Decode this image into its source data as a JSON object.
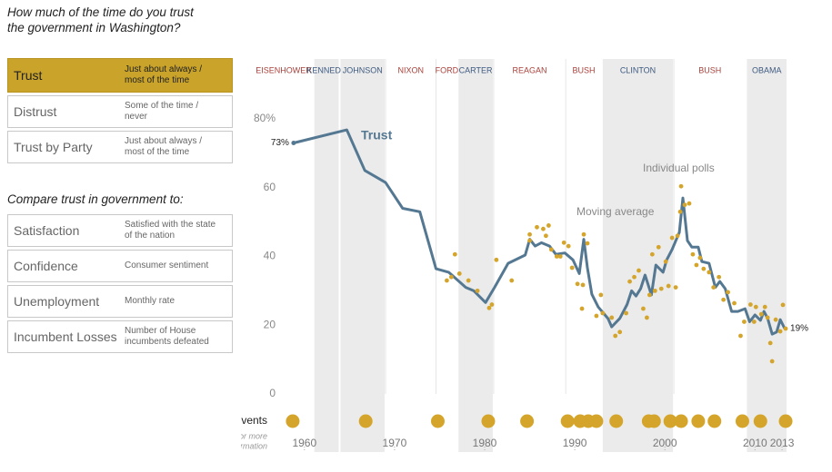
{
  "sidebar": {
    "question": [
      "How much of the time do you trust",
      "the government in Washington?"
    ],
    "measures": [
      {
        "label": "Trust",
        "description": [
          "Just about always /",
          "most of the time"
        ],
        "active": true
      },
      {
        "label": "Distrust",
        "description": [
          "Some of the time /",
          "never"
        ]
      },
      {
        "label": "Trust by Party",
        "description": [
          "Just about always /",
          "most of the time"
        ]
      }
    ],
    "compare_heading": "Compare trust in government to:",
    "comparisons": [
      {
        "label": "Satisfaction",
        "description": [
          "Satisfied with the state",
          "of the nation"
        ]
      },
      {
        "label": "Confidence",
        "description": [
          "Consumer sentiment"
        ]
      },
      {
        "label": "Unemployment",
        "description": [
          "Monthly rate"
        ]
      },
      {
        "label": "Incumbent Losses",
        "description": [
          "Number of House",
          "incumbents defeated"
        ]
      }
    ]
  },
  "chart_data": {
    "type": "line",
    "label": "Trust",
    "xlim": [
      1957.8,
      2013.6
    ],
    "ylim": [
      0,
      80
    ],
    "xticks": [
      1960,
      1970,
      1980,
      1990,
      2000,
      2010,
      2013
    ],
    "yticks": [
      0,
      20,
      40,
      60,
      {
        "value": 80,
        "label": "80%"
      }
    ],
    "presidents": [
      {
        "name": "EISENHOWER",
        "color": "#a8403a"
      },
      {
        "name": "KENNEDY",
        "from": 1961,
        "color": "#3d5a80",
        "shaded": true
      },
      {
        "name": "JOHNSON",
        "from": 1963.9,
        "color": "#3d5a80",
        "shaded": true
      },
      {
        "name": "NIXON",
        "from": 1969,
        "color": "#a8403a"
      },
      {
        "name": "FORD",
        "from": 1974.6,
        "color": "#a8403a"
      },
      {
        "name": "CARTER",
        "from": 1977,
        "color": "#3d5a80",
        "shaded": true
      },
      {
        "name": "REAGAN",
        "from": 1981,
        "color": "#a8403a"
      },
      {
        "name": "BUSH",
        "from": 1989,
        "color": "#a8403a"
      },
      {
        "name": "CLINTON",
        "from": 1993,
        "color": "#3d5a80",
        "shaded": true
      },
      {
        "name": "BUSH",
        "from": 2001,
        "color": "#a8403a"
      },
      {
        "name": "OBAMA",
        "from": 2009,
        "color": "#3d5a80",
        "shaded": true
      }
    ],
    "series": [
      {
        "name": "Moving average",
        "style": "line",
        "color": "#557892",
        "x": [
          1958.8,
          1964.7,
          1966.7,
          1969.0,
          1970.9,
          1972.8,
          1974.6,
          1976.0,
          1977.9,
          1978.8,
          1980.1,
          1981.1,
          1982.6,
          1984.5,
          1985.0,
          1985.6,
          1986.3,
          1987.2,
          1987.9,
          1988.9,
          1989.8,
          1990.5,
          1991.0,
          1991.4,
          1991.9,
          1992.6,
          1993.7,
          1994.1,
          1995.0,
          1995.8,
          1996.3,
          1996.8,
          1997.3,
          1997.8,
          1998.5,
          1999.0,
          1999.8,
          2000.2,
          2000.8,
          2001.6,
          2002.0,
          2002.5,
          2003.0,
          2003.7,
          2004.1,
          2004.9,
          2005.6,
          2006.1,
          2006.7,
          2007.4,
          2008.1,
          2008.9,
          2009.4,
          2010.0,
          2010.6,
          2011.0,
          2011.4,
          2011.9,
          2012.4,
          2012.8,
          2013.3
        ],
        "values": [
          73,
          76.8,
          65,
          61.5,
          54,
          53,
          36.4,
          35.4,
          31,
          30,
          26.6,
          31,
          38,
          40.4,
          45,
          43,
          44,
          43,
          40.6,
          41,
          39,
          35,
          45,
          36.7,
          29,
          25.3,
          21.9,
          19.5,
          22,
          26,
          30,
          28.5,
          30.6,
          34.6,
          28.8,
          37.5,
          35.4,
          39,
          42,
          47,
          57,
          44.6,
          42.7,
          42.7,
          38.5,
          38,
          31,
          32.7,
          30.6,
          24,
          24,
          24.8,
          21,
          23,
          21.4,
          24,
          22,
          17.4,
          18,
          21.6,
          19
        ],
        "value_labels": [
          "73%",
          null,
          null,
          null,
          null,
          null,
          null,
          null,
          null,
          null,
          null,
          null,
          null,
          null,
          null,
          null,
          null,
          null,
          null,
          null,
          null,
          null,
          null,
          null,
          null,
          null,
          null,
          null,
          null,
          null,
          null,
          null,
          null,
          null,
          null,
          null,
          null,
          null,
          null,
          null,
          null,
          null,
          null,
          null,
          null,
          null,
          null,
          null,
          null,
          null,
          null,
          null,
          null,
          null,
          null,
          null,
          null,
          null,
          null,
          null,
          "19%"
        ]
      },
      {
        "name": "Individual polls",
        "style": "points",
        "color": "#d4a52a",
        "x": [
          1975.8,
          1976.3,
          1976.7,
          1977.2,
          1978.2,
          1979.2,
          1980.5,
          1980.8,
          1981.3,
          1983.0,
          1985.0,
          1985.0,
          1985.8,
          1986.5,
          1986.8,
          1987.1,
          1987.4,
          1988.0,
          1988.4,
          1988.8,
          1989.3,
          1989.7,
          1990.3,
          1990.9,
          1991.0,
          1991.4,
          1990.8,
          1992.4,
          1992.9,
          1993.1,
          1994.1,
          1994.5,
          1995.0,
          1995.7,
          1996.1,
          1996.6,
          1997.1,
          1997.6,
          1998.0,
          1998.3,
          1998.6,
          1998.9,
          1999.3,
          1999.6,
          2000.1,
          2000.4,
          2000.8,
          2001.2,
          2001.4,
          2001.7,
          2001.8,
          2002.2,
          2002.7,
          2003.1,
          2003.5,
          2003.9,
          2004.3,
          2004.9,
          2005.4,
          2006.0,
          2006.5,
          2007.0,
          2007.7,
          2008.4,
          2008.8,
          2009.5,
          2009.9,
          2010.1,
          2010.7,
          2011.1,
          2011.4,
          2011.7,
          2011.9,
          2012.3,
          2012.8,
          2013.1,
          2013.4
        ],
        "values": [
          33,
          34,
          40.6,
          35,
          33,
          30,
          25,
          26,
          39,
          33,
          46.4,
          44.6,
          48.5,
          48,
          46,
          49,
          42,
          40,
          40,
          44,
          43,
          36.7,
          32,
          31.7,
          46.4,
          43.8,
          24.8,
          22.7,
          28.8,
          23.5,
          22.2,
          16.9,
          18,
          23.5,
          32.7,
          34,
          35.9,
          24.8,
          22.2,
          28.8,
          40.6,
          30,
          42.7,
          30.6,
          38.5,
          31.4,
          45.4,
          31,
          46,
          53,
          60.4,
          55,
          55.4,
          40.6,
          37.5,
          39.6,
          36.4,
          35.4,
          31,
          34,
          27.4,
          29.6,
          26.4,
          16.9,
          21,
          26,
          21,
          25.3,
          23.2,
          25.3,
          22.2,
          14.8,
          9.5,
          21.6,
          18.2,
          25.9,
          19
        ]
      }
    ],
    "key_events": {
      "label": "Key Events",
      "note": [
        "Roll over for more",
        "information"
      ],
      "color": "#d4a52a",
      "x": [
        1958.7,
        1966.8,
        1974.8,
        1980.4,
        1984.7,
        1989.2,
        1990.6,
        1991.5,
        1992.4,
        1994.6,
        1998.2,
        1998.8,
        2000.6,
        2001.8,
        2003.7,
        2005.5,
        2008.6,
        2010.6,
        2013.4
      ]
    }
  }
}
